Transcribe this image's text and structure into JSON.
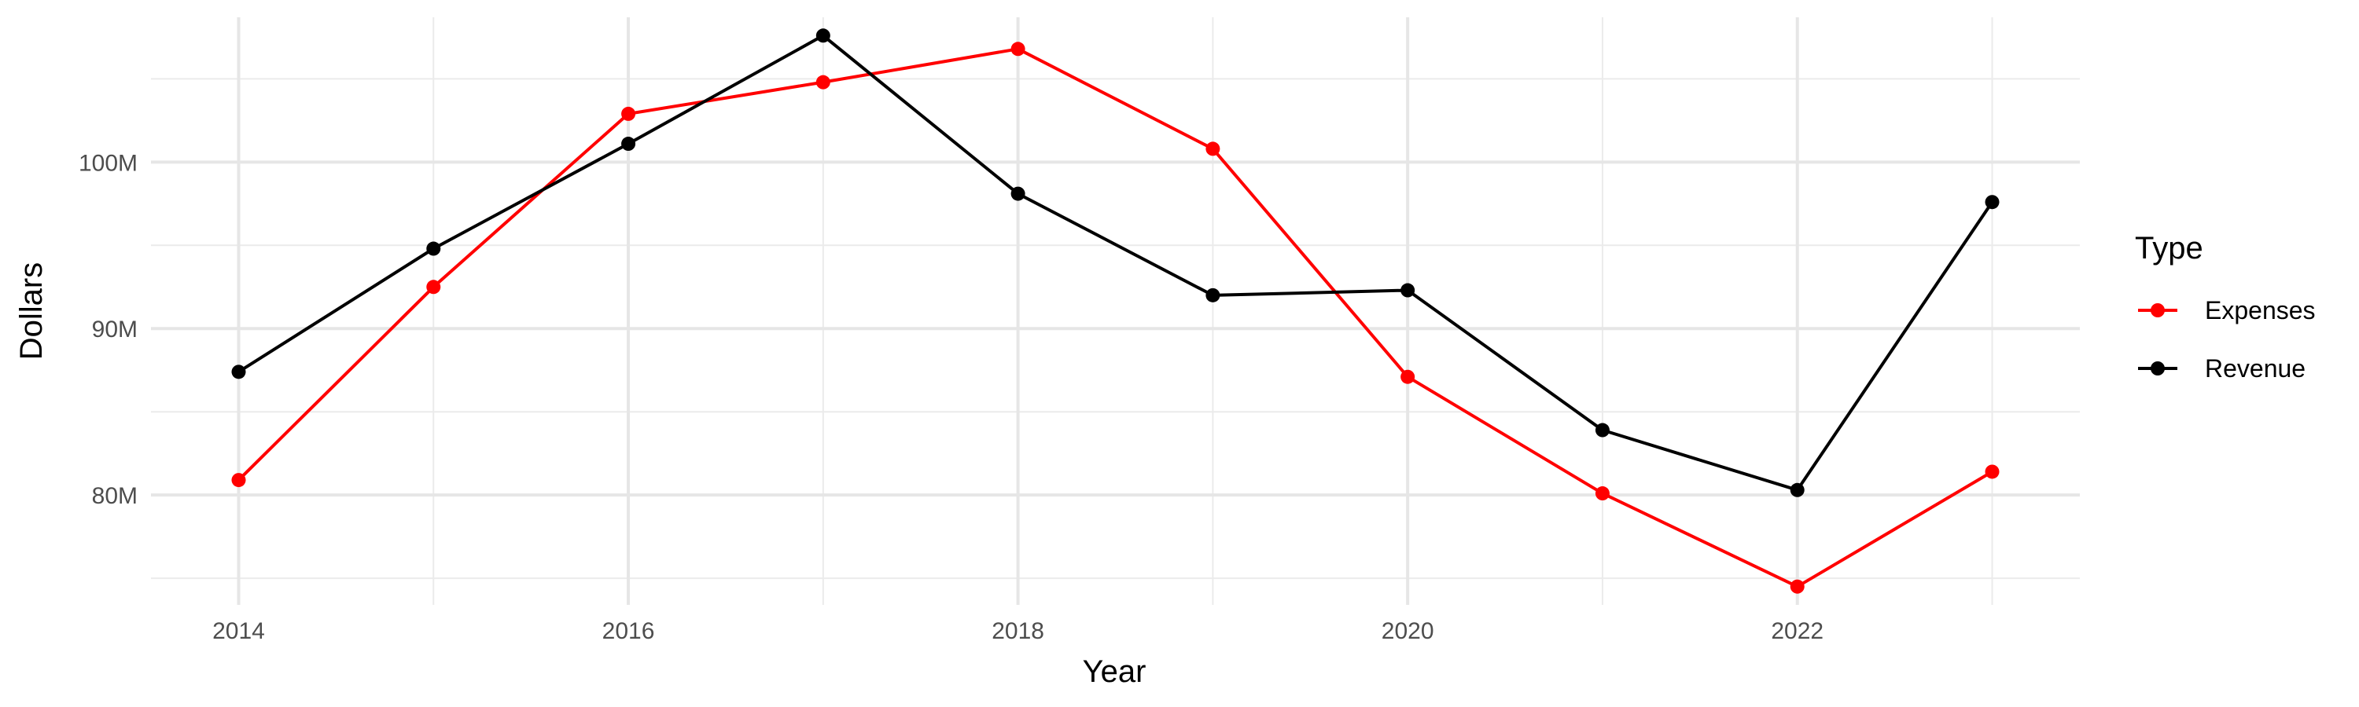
{
  "chart_data": {
    "type": "line",
    "xlabel": "Year",
    "ylabel": "Dollars",
    "x": [
      2014,
      2015,
      2016,
      2017,
      2018,
      2019,
      2020,
      2021,
      2022,
      2023
    ],
    "x_ticks": [
      2014,
      2016,
      2018,
      2020,
      2022
    ],
    "x_tick_labels": [
      "2014",
      "2016",
      "2018",
      "2020",
      "2022"
    ],
    "xlim": [
      2013.55,
      2023.45
    ],
    "y_ticks": [
      80000000,
      90000000,
      100000000
    ],
    "y_tick_labels": [
      "80M",
      "90M",
      "100M"
    ],
    "ylim": [
      73400000,
      108700000
    ],
    "grid": true,
    "legend_position": "right",
    "legend": {
      "title": "Type",
      "items": [
        "Expenses",
        "Revenue"
      ]
    },
    "series": [
      {
        "name": "Expenses",
        "color": "#ff0000",
        "values": [
          80900000,
          92500000,
          102900000,
          104800000,
          106800000,
          100800000,
          87100000,
          80100000,
          74500000,
          81400000
        ]
      },
      {
        "name": "Revenue",
        "color": "#000000",
        "values": [
          87400000,
          94800000,
          101100000,
          107600000,
          98100000,
          92000000,
          92300000,
          83900000,
          80300000,
          97600000
        ]
      }
    ]
  }
}
